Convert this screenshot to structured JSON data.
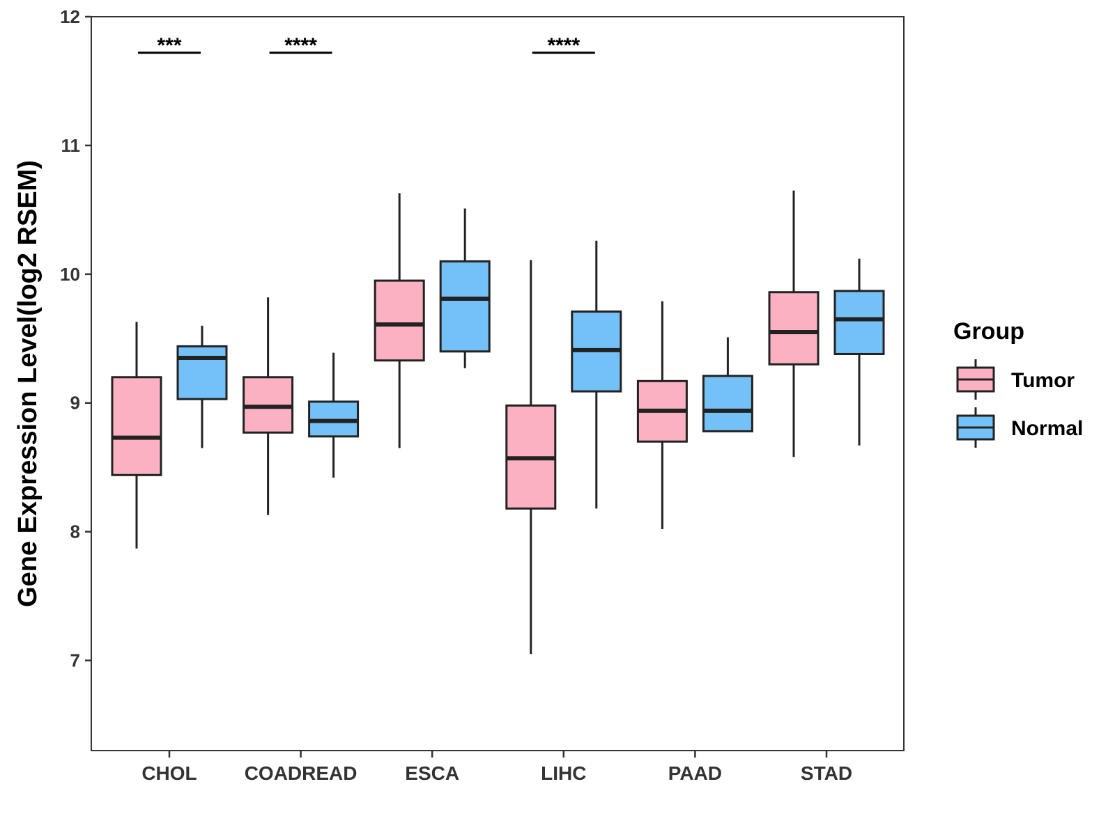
{
  "chart_data": {
    "type": "boxplot",
    "categories": [
      "CHOL",
      "COADREAD",
      "ESCA",
      "LIHC",
      "PAAD",
      "STAD"
    ],
    "ylabel": "Gene Expression Level(log2 RSEM)",
    "xlabel": "",
    "ylim": [
      6.3,
      12.0
    ],
    "yticks": [
      "7",
      "8",
      "9",
      "10",
      "11",
      "12"
    ],
    "grid": false,
    "legend": {
      "title": "Group",
      "position": "right",
      "entries": [
        "Tumor",
        "Normal"
      ]
    },
    "series": [
      {
        "name": "Tumor",
        "color": "#fbb1c2",
        "boxes": [
          {
            "min": 7.87,
            "q1": 8.44,
            "median": 8.73,
            "q3": 9.2,
            "max": 9.63
          },
          {
            "min": 8.13,
            "q1": 8.77,
            "median": 8.97,
            "q3": 9.2,
            "max": 9.82
          },
          {
            "min": 8.65,
            "q1": 9.33,
            "median": 9.61,
            "q3": 9.95,
            "max": 10.63
          },
          {
            "min": 7.05,
            "q1": 8.18,
            "median": 8.57,
            "q3": 8.98,
            "max": 10.11
          },
          {
            "min": 8.02,
            "q1": 8.7,
            "median": 8.94,
            "q3": 9.17,
            "max": 9.79
          },
          {
            "min": 8.58,
            "q1": 9.3,
            "median": 9.55,
            "q3": 9.86,
            "max": 10.65
          }
        ]
      },
      {
        "name": "Normal",
        "color": "#74c1f8",
        "boxes": [
          {
            "min": 8.65,
            "q1": 9.03,
            "median": 9.35,
            "q3": 9.44,
            "max": 9.6
          },
          {
            "min": 8.42,
            "q1": 8.74,
            "median": 8.86,
            "q3": 9.01,
            "max": 9.39
          },
          {
            "min": 9.27,
            "q1": 9.4,
            "median": 9.81,
            "q3": 10.1,
            "max": 10.51
          },
          {
            "min": 8.18,
            "q1": 9.09,
            "median": 9.41,
            "q3": 9.71,
            "max": 10.26
          },
          {
            "min": 8.78,
            "q1": 8.78,
            "median": 8.94,
            "q3": 9.21,
            "max": 9.51
          },
          {
            "min": 8.67,
            "q1": 9.38,
            "median": 9.65,
            "q3": 9.87,
            "max": 10.12
          }
        ]
      }
    ],
    "significance": [
      {
        "category": "CHOL",
        "label": "***"
      },
      {
        "category": "COADREAD",
        "label": "****"
      },
      {
        "category": "LIHC",
        "label": "****"
      }
    ],
    "significance_y": 11.72
  }
}
